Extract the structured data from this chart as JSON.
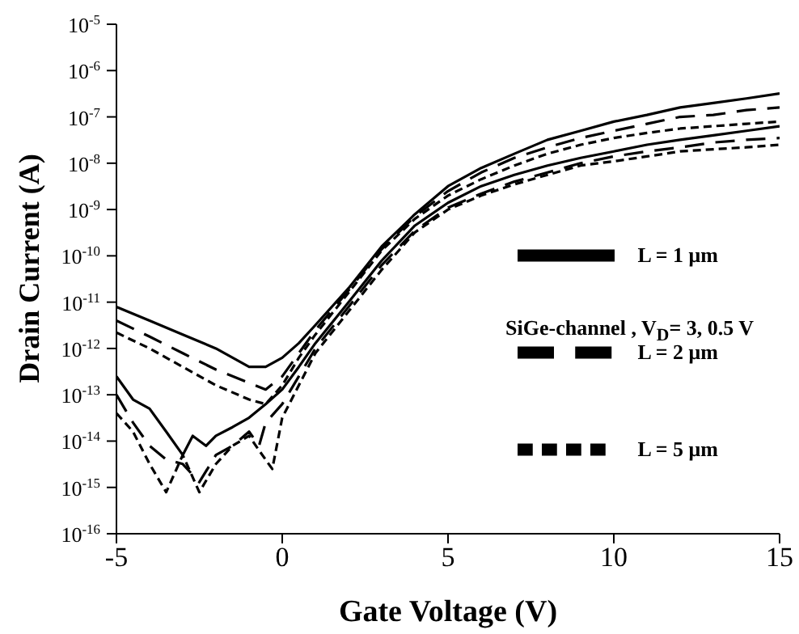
{
  "chart_data": {
    "type": "line",
    "xlabel": "Gate Voltage (V)",
    "ylabel": "Drain Current (A)",
    "log": "y",
    "xlim": [
      -5,
      15
    ],
    "xticks": [
      -5,
      0,
      5,
      10,
      15
    ],
    "ylim": [
      1e-16,
      1e-05
    ],
    "yticks": [
      {
        "value": 1e-16,
        "label": "10$^{-16}$"
      },
      {
        "value": 1e-15,
        "label": "10$^{-15}$"
      },
      {
        "value": 1e-14,
        "label": "10$^{-14}$"
      },
      {
        "value": 1e-13,
        "label": "10$^{-13}$"
      },
      {
        "value": 1e-12,
        "label": "10$^{-12}$"
      },
      {
        "value": 1e-11,
        "label": "10$^{-11}$"
      },
      {
        "value": 1e-10,
        "label": "10$^{-10}$"
      },
      {
        "value": 1e-09,
        "label": "10$^{-9}$"
      },
      {
        "value": 1e-08,
        "label": "10$^{-8}$"
      },
      {
        "value": 1e-07,
        "label": "10$^{-7}$"
      },
      {
        "value": 1e-06,
        "label": "10$^{-6}$"
      },
      {
        "value": 1e-05,
        "label": "10$^{-5}$"
      }
    ],
    "legend": "bottom right",
    "marker": "none",
    "annotations": [
      "SiGe-channel , V$_{D}$= 3, 0.5 V"
    ],
    "x": [
      -5,
      -4,
      -3,
      -2,
      -1,
      -0.5,
      0,
      0.5,
      1,
      2,
      3,
      4,
      5,
      6,
      7,
      8,
      9,
      10,
      11,
      12,
      13,
      14,
      15
    ],
    "series": [
      {
        "name": "L = 1 μm",
        "color": "#000000",
        "line_style": "solid",
        "values": [
          7.9e-12,
          4e-12,
          2e-12,
          1e-12,
          4e-13,
          4e-13,
          6.3e-13,
          1.3e-12,
          3.2e-12,
          2e-11,
          1.6e-10,
          7.9e-10,
          3.2e-09,
          7.9e-09,
          1.6e-08,
          3.2e-08,
          5e-08,
          7.9e-08,
          1.1e-07,
          1.6e-07,
          2e-07,
          2.5e-07,
          3.2e-07
        ]
      },
      {
        "name": "L = 2 μm",
        "color": "#000000",
        "line_style": "dashed",
        "values": [
          4e-12,
          1.8e-12,
          7.9e-13,
          3.5e-13,
          1.8e-13,
          1.3e-13,
          2.5e-13,
          7.9e-13,
          2.5e-12,
          1.8e-11,
          1.4e-10,
          7.1e-10,
          2.5e-09,
          6.3e-09,
          1.3e-08,
          2.2e-08,
          3.5e-08,
          5e-08,
          7.1e-08,
          1e-07,
          1.1e-07,
          1.4e-07,
          1.6e-07
        ]
      },
      {
        "name": "L = 5 μm",
        "color": "#000000",
        "line_style": "dotted",
        "values": [
          2.2e-12,
          1e-12,
          4e-13,
          1.6e-13,
          7.9e-14,
          6.3e-14,
          1.6e-13,
          6.3e-13,
          2e-12,
          1.6e-11,
          1.3e-10,
          6.3e-10,
          2e-09,
          4.5e-09,
          8.9e-09,
          1.6e-08,
          2.5e-08,
          3.5e-08,
          4.5e-08,
          5.6e-08,
          6.3e-08,
          7.1e-08,
          7.9e-08
        ]
      },
      {
        "color": "#000000",
        "line_style": "solid",
        "x": [
          -5,
          -4.5,
          -4,
          -3.5,
          -3,
          -2.7,
          -2.3,
          -2,
          -1.5,
          -1,
          -0.5,
          0,
          0.5,
          1,
          2,
          3,
          4,
          5,
          6,
          7,
          8,
          9,
          10,
          11,
          12,
          13,
          14,
          15
        ],
        "values": [
          2.5e-13,
          7.9e-14,
          5e-14,
          1.6e-14,
          5e-15,
          1.3e-14,
          7.9e-15,
          1.3e-14,
          2e-14,
          3.2e-14,
          6.3e-14,
          1.3e-13,
          4e-13,
          1.3e-12,
          1e-11,
          7.9e-11,
          4.5e-10,
          1.4e-09,
          3.2e-09,
          5.6e-09,
          8.9e-09,
          1.3e-08,
          1.8e-08,
          2.5e-08,
          3.2e-08,
          4e-08,
          5e-08,
          6.3e-08
        ]
      },
      {
        "color": "#000000",
        "line_style": "dashed",
        "x": [
          -5,
          -4.5,
          -4,
          -3.5,
          -3,
          -2.5,
          -2,
          -1.5,
          -1,
          -0.7,
          -0.5,
          0,
          0.5,
          1,
          2,
          3,
          4,
          5,
          6,
          7,
          8,
          9,
          10,
          11,
          12,
          13,
          14,
          15
        ],
        "values": [
          1e-13,
          2.5e-14,
          7.9e-15,
          4e-15,
          3.2e-15,
          1.3e-15,
          5e-15,
          7.9e-15,
          1.6e-14,
          7.9e-15,
          2.5e-14,
          6.3e-14,
          2.5e-13,
          1e-12,
          7.9e-12,
          6.3e-11,
          3.5e-10,
          1.1e-09,
          2.2e-09,
          4e-09,
          6.3e-09,
          1e-08,
          1.4e-08,
          1.8e-08,
          2.2e-08,
          2.8e-08,
          3.2e-08,
          3.5e-08
        ]
      },
      {
        "color": "#000000",
        "line_style": "dotted",
        "x": [
          -5,
          -4.5,
          -4,
          -3.5,
          -3,
          -2.5,
          -2,
          -1.5,
          -1,
          -0.7,
          -0.3,
          0,
          0.5,
          1,
          2,
          3,
          4,
          5,
          6,
          7,
          8,
          9,
          10,
          11,
          12,
          13,
          14,
          15
        ],
        "values": [
          4e-14,
          1.6e-14,
          3.2e-15,
          7.9e-16,
          5e-15,
          7.9e-16,
          3.2e-15,
          7.9e-15,
          1.3e-14,
          6.3e-15,
          2.5e-15,
          3.2e-14,
          1.6e-13,
          7.9e-13,
          6.3e-12,
          5e-11,
          3.2e-10,
          1e-09,
          2e-09,
          3.5e-09,
          5.6e-09,
          8.9e-09,
          1.1e-08,
          1.4e-08,
          1.8e-08,
          2e-08,
          2.2e-08,
          2.5e-08
        ]
      }
    ]
  }
}
